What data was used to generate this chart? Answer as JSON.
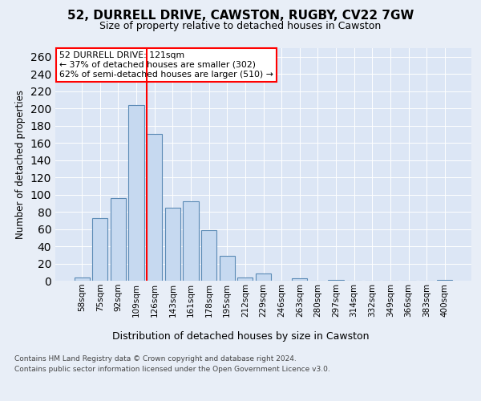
{
  "title1": "52, DURRELL DRIVE, CAWSTON, RUGBY, CV22 7GW",
  "title2": "Size of property relative to detached houses in Cawston",
  "xlabel": "Distribution of detached houses by size in Cawston",
  "ylabel": "Number of detached properties",
  "bar_labels": [
    "58sqm",
    "75sqm",
    "92sqm",
    "109sqm",
    "126sqm",
    "143sqm",
    "161sqm",
    "178sqm",
    "195sqm",
    "212sqm",
    "229sqm",
    "246sqm",
    "263sqm",
    "280sqm",
    "297sqm",
    "314sqm",
    "332sqm",
    "349sqm",
    "366sqm",
    "383sqm",
    "400sqm"
  ],
  "bar_values": [
    4,
    73,
    96,
    204,
    170,
    85,
    92,
    59,
    29,
    4,
    8,
    0,
    3,
    0,
    1,
    0,
    0,
    0,
    0,
    0,
    1
  ],
  "bar_color": "#c6d9f0",
  "bar_edgecolor": "#5a8ab5",
  "vline_index": 4,
  "vline_color": "red",
  "ylim": [
    0,
    270
  ],
  "yticks": [
    0,
    20,
    40,
    60,
    80,
    100,
    120,
    140,
    160,
    180,
    200,
    220,
    240,
    260
  ],
  "annotation_title": "52 DURRELL DRIVE: 121sqm",
  "annotation_line1": "← 37% of detached houses are smaller (302)",
  "annotation_line2": "62% of semi-detached houses are larger (510) →",
  "background_color": "#e8eef7",
  "plot_bg_color": "#dce6f5",
  "footer1": "Contains HM Land Registry data © Crown copyright and database right 2024.",
  "footer2": "Contains public sector information licensed under the Open Government Licence v3.0."
}
